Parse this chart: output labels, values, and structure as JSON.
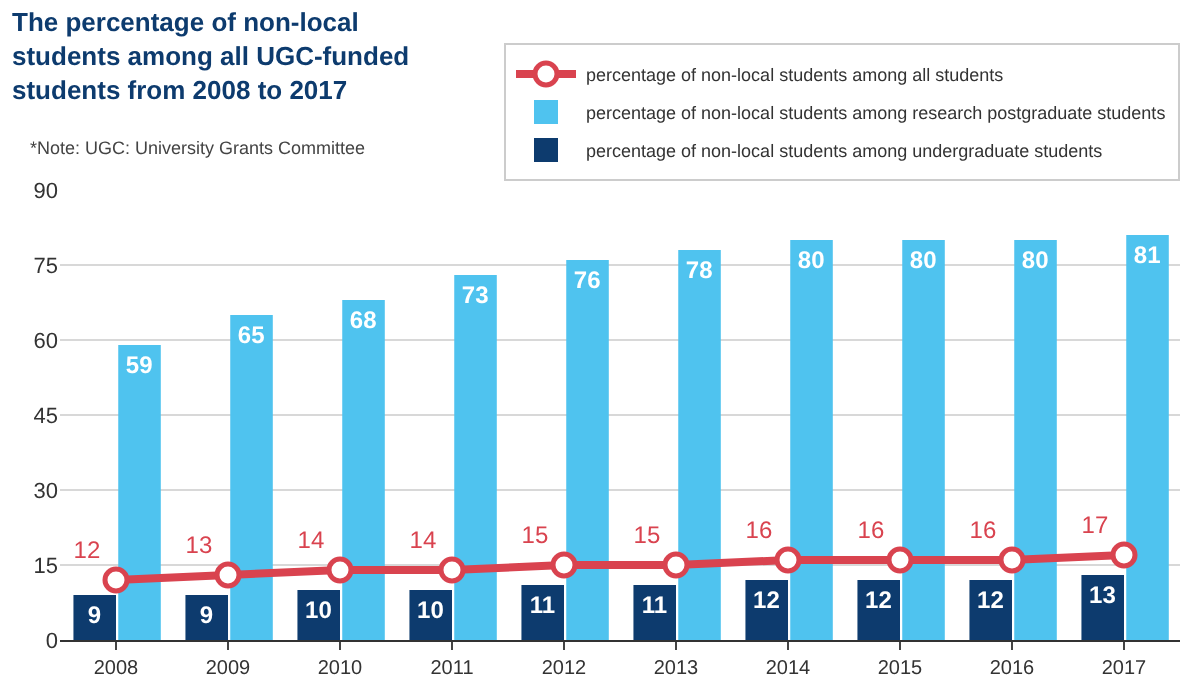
{
  "chart_data": {
    "type": "bar",
    "title": "The percentage of non-local students among all UGC-funded students from 2008 to 2017",
    "annotations": [
      "*Note: UGC: University Grants Committee"
    ],
    "categories": [
      "2008",
      "2009",
      "2010",
      "2011",
      "2012",
      "2013",
      "2014",
      "2015",
      "2016",
      "2017"
    ],
    "series": [
      {
        "name": "percentage of non-local students among all students",
        "type": "line",
        "color": "#d9434f",
        "values": [
          12,
          13,
          14,
          14,
          15,
          15,
          16,
          16,
          16,
          17
        ]
      },
      {
        "name": "percentage of non-local students among research postgraduate students",
        "type": "bar",
        "color": "#4fc3ef",
        "values": [
          59,
          65,
          68,
          73,
          76,
          78,
          80,
          80,
          80,
          81
        ]
      },
      {
        "name": "percentage of non-local students among undergraduate students",
        "type": "bar",
        "color": "#0d3b6e",
        "values": [
          9,
          9,
          10,
          10,
          11,
          11,
          12,
          12,
          12,
          13
        ]
      }
    ],
    "ylim": [
      0,
      90
    ],
    "yticks": [
      0,
      15,
      30,
      45,
      60,
      75,
      90
    ],
    "grid": "y",
    "legend": "top right",
    "marker": "circle",
    "line_style": "solid",
    "data_labels": true
  }
}
